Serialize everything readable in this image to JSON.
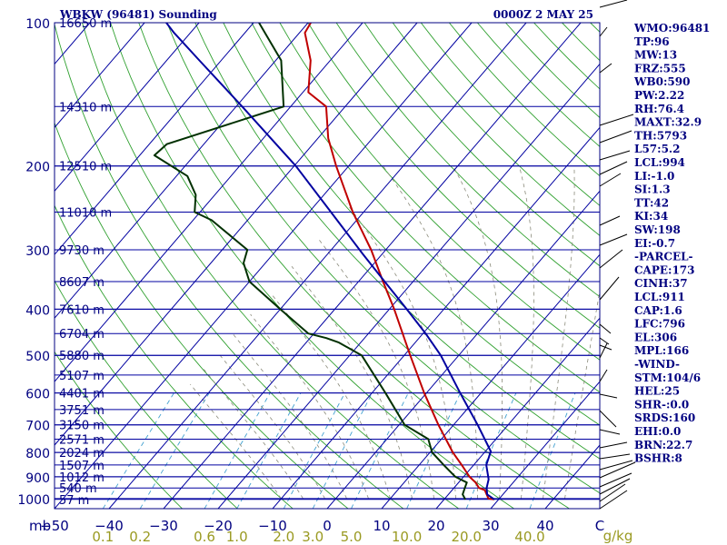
{
  "header": {
    "station": "WBKW (96481) Sounding",
    "time": "0000Z  2 MAY 25"
  },
  "chart_data": {
    "type": "skew-t",
    "pressure_unit_label": "mb",
    "mixing_ratio_unit_label": "g/kg",
    "p_ticks": [
      {
        "p": 100,
        "label": "100"
      },
      {
        "p": 200,
        "label": "200"
      },
      {
        "p": 300,
        "label": "300"
      },
      {
        "p": 400,
        "label": "400"
      },
      {
        "p": 500,
        "label": "500"
      },
      {
        "p": 600,
        "label": "600"
      },
      {
        "p": 700,
        "label": "700"
      },
      {
        "p": 800,
        "label": "800"
      },
      {
        "p": 900,
        "label": "900"
      },
      {
        "p": 1000,
        "label": "1000"
      }
    ],
    "t_ticks": [
      {
        "t": -50,
        "label": "−50"
      },
      {
        "t": -40,
        "label": "−40"
      },
      {
        "t": -30,
        "label": "−30"
      },
      {
        "t": -20,
        "label": "−20"
      },
      {
        "t": -10,
        "label": "−10"
      },
      {
        "t": 0,
        "label": "0"
      },
      {
        "t": 10,
        "label": "10"
      },
      {
        "t": 20,
        "label": "20"
      },
      {
        "t": 30,
        "label": "30"
      },
      {
        "t": 40,
        "label": "40"
      },
      {
        "t": 50,
        "label": "C"
      }
    ],
    "mixing_ratio_labels": [
      {
        "w": 0.1,
        "label": "0.1"
      },
      {
        "w": 0.2,
        "label": "0.2"
      },
      {
        "w": 0.6,
        "label": "0.6"
      },
      {
        "w": 1.0,
        "label": "1.0"
      },
      {
        "w": 2.0,
        "label": "2.0"
      },
      {
        "w": 3.0,
        "label": "3.0"
      },
      {
        "w": 5.0,
        "label": "5.0"
      },
      {
        "w": 10.0,
        "label": "10.0"
      },
      {
        "w": 20.0,
        "label": "20.0"
      },
      {
        "w": 40.0,
        "label": "40.0"
      }
    ],
    "height_levels": [
      {
        "p": 100,
        "label": "16650 m"
      },
      {
        "p": 150,
        "label": "14310 m"
      },
      {
        "p": 200,
        "label": "12510 m"
      },
      {
        "p": 250,
        "label": "11010 m"
      },
      {
        "p": 300,
        "label": "9730 m"
      },
      {
        "p": 350,
        "label": "8607 m"
      },
      {
        "p": 400,
        "label": "7610 m"
      },
      {
        "p": 450,
        "label": "6704 m"
      },
      {
        "p": 500,
        "label": "5880 m"
      },
      {
        "p": 550,
        "label": "5107 m"
      },
      {
        "p": 600,
        "label": "4401 m"
      },
      {
        "p": 650,
        "label": "3751 m"
      },
      {
        "p": 700,
        "label": "3150 m"
      },
      {
        "p": 750,
        "label": "2571 m"
      },
      {
        "p": 800,
        "label": "2024 m"
      },
      {
        "p": 850,
        "label": "1507 m"
      },
      {
        "p": 900,
        "label": "1012 m"
      },
      {
        "p": 950,
        "label": "540 m"
      },
      {
        "p": 1004,
        "label": "57 m"
      }
    ],
    "series": [
      {
        "name": "temperature",
        "color": "#c00000",
        "points": [
          [
            1004,
            29.2
          ],
          [
            1000,
            28
          ],
          [
            960,
            26
          ],
          [
            950,
            24.6
          ],
          [
            925,
            23.1
          ],
          [
            900,
            21.1
          ],
          [
            850,
            17.8
          ],
          [
            800,
            14.2
          ],
          [
            700,
            7.2
          ],
          [
            600,
            -0.4
          ],
          [
            500,
            -8.9
          ],
          [
            400,
            -19.1
          ],
          [
            350,
            -25.5
          ],
          [
            300,
            -32.7
          ],
          [
            250,
            -42
          ],
          [
            200,
            -52.3
          ],
          [
            175,
            -58.1
          ],
          [
            150,
            -63.5
          ],
          [
            140,
            -69
          ],
          [
            120,
            -73.6
          ],
          [
            105,
            -79
          ],
          [
            100,
            -79.5
          ]
        ]
      },
      {
        "name": "dewpoint",
        "color": "#003000",
        "points": [
          [
            1004,
            23.9
          ],
          [
            980,
            22.6
          ],
          [
            950,
            22
          ],
          [
            925,
            21.5
          ],
          [
            900,
            18.5
          ],
          [
            850,
            14.5
          ],
          [
            800,
            10.4
          ],
          [
            750,
            7.6
          ],
          [
            700,
            1
          ],
          [
            600,
            -7.5
          ],
          [
            500,
            -17.8
          ],
          [
            470,
            -24
          ],
          [
            460,
            -27
          ],
          [
            450,
            -31
          ],
          [
            400,
            -40
          ],
          [
            350,
            -50
          ],
          [
            320,
            -54
          ],
          [
            300,
            -55.4
          ],
          [
            260,
            -66.6
          ],
          [
            250,
            -71
          ],
          [
            230,
            -73.5
          ],
          [
            210,
            -78
          ],
          [
            190,
            -87.3
          ],
          [
            180,
            -86.8
          ],
          [
            150,
            -71.3
          ],
          [
            120,
            -79
          ],
          [
            100,
            -89
          ]
        ]
      },
      {
        "name": "parcel",
        "color": "#0000a0",
        "points": [
          [
            1004,
            29.2
          ],
          [
            980,
            27.1
          ],
          [
            950,
            26
          ],
          [
            911,
            25
          ],
          [
            850,
            22.3
          ],
          [
            796,
            21
          ],
          [
            700,
            14.4
          ],
          [
            600,
            6.2
          ],
          [
            500,
            -3.3
          ],
          [
            450,
            -9.5
          ],
          [
            400,
            -16.8
          ],
          [
            350,
            -25.2
          ],
          [
            306,
            -33.6
          ],
          [
            250,
            -46
          ],
          [
            200,
            -59.7
          ],
          [
            150,
            -78.9
          ],
          [
            120,
            -94
          ],
          [
            105,
            -103
          ],
          [
            100,
            -106
          ]
        ]
      }
    ]
  },
  "indices": [
    "WMO:96481",
    "TP:96",
    "MW:13",
    "FRZ:555",
    "WB0:590",
    "PW:2.22",
    "RH:76.4",
    "MAXT:32.9",
    "TH:5793",
    "L57:5.2",
    "LCL:994",
    "LI:-1.0",
    "SI:1.3",
    "TT:42",
    "KI:34",
    "SW:198",
    "EI:-0.7",
    "-PARCEL-",
    "CAPE:173",
    "CINH:37",
    "LCL:911",
    "CAP:1.6",
    "LFC:796",
    "EL:306",
    "MPL:166",
    "-WIND-",
    "STM:104/6",
    "HEL:25",
    "SHR-:0.0",
    "SRDS:160",
    "EHI:0.0",
    "BRN:22.7",
    "BSHR:8"
  ]
}
